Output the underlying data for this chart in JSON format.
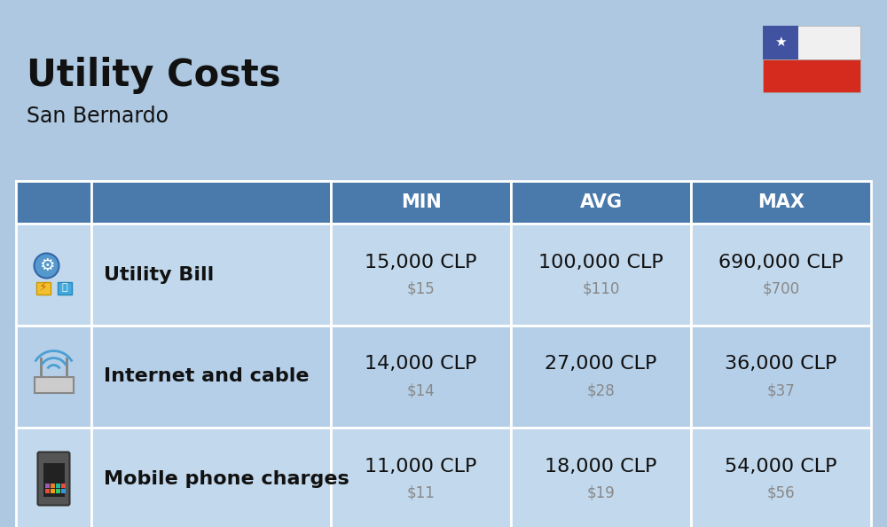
{
  "title": "Utility Costs",
  "subtitle": "San Bernardo",
  "background_color": "#adc8e0",
  "header_bg_color": "#4a7aab",
  "header_text_color": "#ffffff",
  "row_bg_color_1": "#c2d8ec",
  "row_bg_color_2": "#b5cfe8",
  "table_border_color": "#ffffff",
  "col_headers": [
    "MIN",
    "AVG",
    "MAX"
  ],
  "rows": [
    {
      "label": "Utility Bill",
      "min_clp": "15,000 CLP",
      "min_usd": "$15",
      "avg_clp": "100,000 CLP",
      "avg_usd": "$110",
      "max_clp": "690,000 CLP",
      "max_usd": "$700"
    },
    {
      "label": "Internet and cable",
      "min_clp": "14,000 CLP",
      "min_usd": "$14",
      "avg_clp": "27,000 CLP",
      "avg_usd": "$28",
      "max_clp": "36,000 CLP",
      "max_usd": "$37"
    },
    {
      "label": "Mobile phone charges",
      "min_clp": "11,000 CLP",
      "min_usd": "$11",
      "avg_clp": "18,000 CLP",
      "avg_usd": "$19",
      "max_clp": "54,000 CLP",
      "max_usd": "$56"
    }
  ],
  "title_fontsize": 30,
  "subtitle_fontsize": 17,
  "header_fontsize": 15,
  "cell_clp_fontsize": 16,
  "cell_usd_fontsize": 12,
  "label_fontsize": 16,
  "flag_white": "#f0f0f0",
  "flag_red": "#d52b1e",
  "flag_blue": "#4052a0",
  "flag_star": "#ffffff"
}
